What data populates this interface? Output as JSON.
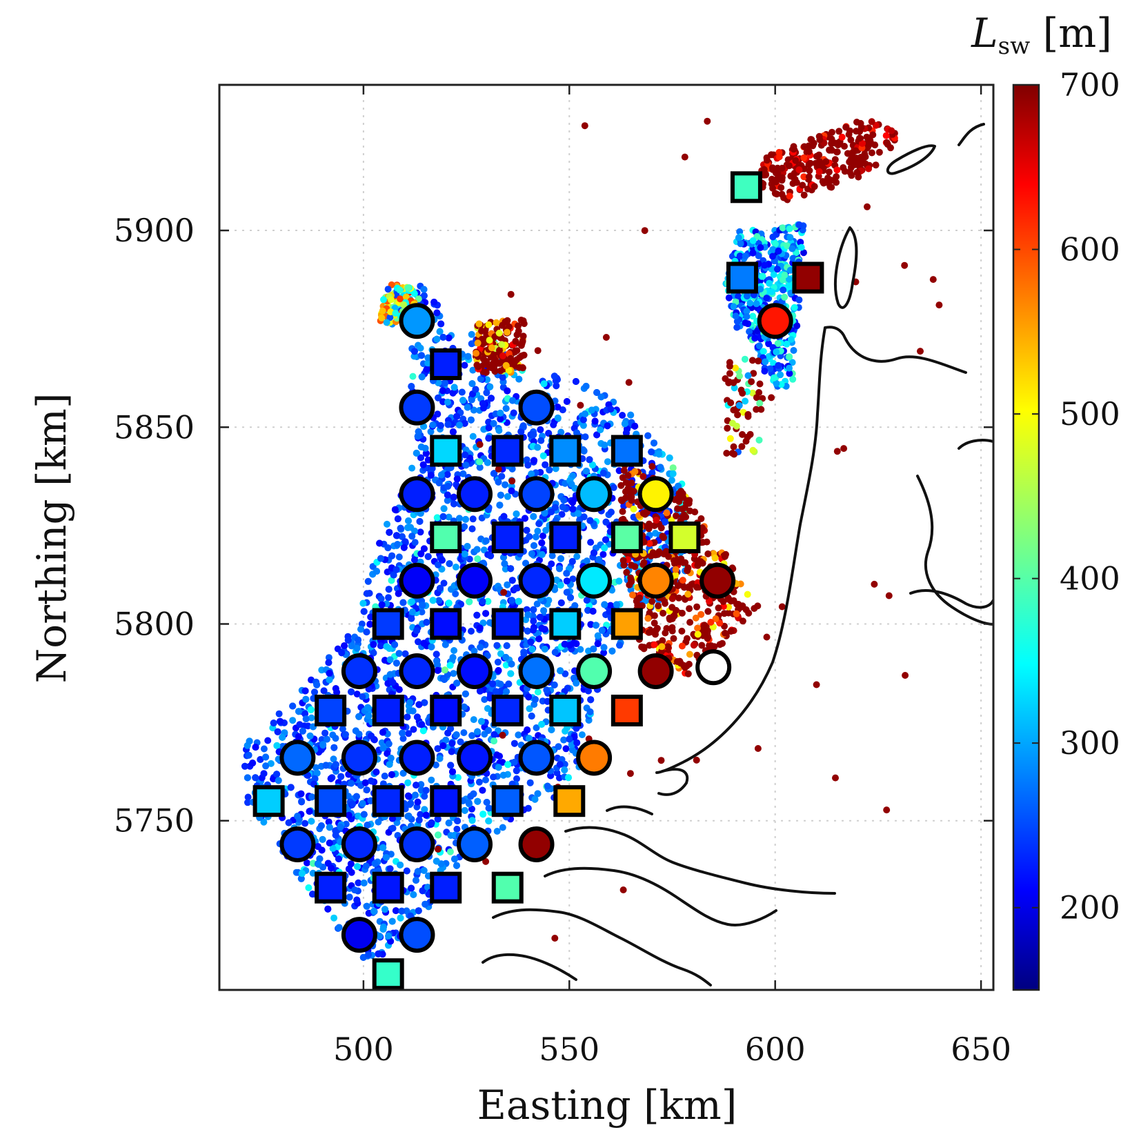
{
  "chart_data": {
    "type": "scatter",
    "xlabel": "Easting [km]",
    "ylabel": "Northing [km]",
    "xlim": [
      465,
      653
    ],
    "ylim": [
      5707,
      5937
    ],
    "xticks": [
      500,
      550,
      600,
      650
    ],
    "yticks": [
      5750,
      5800,
      5850,
      5900
    ],
    "grid": true,
    "colorbar": {
      "label_main": "L",
      "label_sub": "sw",
      "label_unit": " [m]",
      "range": [
        150,
        700
      ],
      "ticks": [
        200,
        300,
        400,
        500,
        600,
        700
      ],
      "colormap": "jet"
    },
    "series": [
      {
        "marker": "circle",
        "points": [
          {
            "x": 513,
            "y": 5877,
            "c": 300
          },
          {
            "x": 600,
            "y": 5877,
            "c": 620
          },
          {
            "x": 513,
            "y": 5855,
            "c": 250
          },
          {
            "x": 542,
            "y": 5855,
            "c": 260
          },
          {
            "x": 513,
            "y": 5833,
            "c": 235
          },
          {
            "x": 527,
            "y": 5833,
            "c": 235
          },
          {
            "x": 542,
            "y": 5833,
            "c": 255
          },
          {
            "x": 556,
            "y": 5833,
            "c": 320
          },
          {
            "x": 571,
            "y": 5833,
            "c": 500
          },
          {
            "x": 513,
            "y": 5811,
            "c": 215
          },
          {
            "x": 527,
            "y": 5811,
            "c": 215
          },
          {
            "x": 542,
            "y": 5811,
            "c": 240
          },
          {
            "x": 556,
            "y": 5811,
            "c": 345
          },
          {
            "x": 571,
            "y": 5811,
            "c": 560
          },
          {
            "x": 586,
            "y": 5811,
            "c": 690
          },
          {
            "x": 499,
            "y": 5788,
            "c": 245
          },
          {
            "x": 513,
            "y": 5788,
            "c": 240
          },
          {
            "x": 527,
            "y": 5788,
            "c": 225
          },
          {
            "x": 542,
            "y": 5788,
            "c": 280
          },
          {
            "x": 556,
            "y": 5788,
            "c": 400
          },
          {
            "x": 571,
            "y": 5788,
            "c": 690
          },
          {
            "x": 484,
            "y": 5766,
            "c": 275
          },
          {
            "x": 499,
            "y": 5766,
            "c": 245
          },
          {
            "x": 513,
            "y": 5766,
            "c": 235
          },
          {
            "x": 527,
            "y": 5766,
            "c": 230
          },
          {
            "x": 542,
            "y": 5766,
            "c": 265
          },
          {
            "x": 556,
            "y": 5766,
            "c": 565
          },
          {
            "x": 484,
            "y": 5744,
            "c": 250
          },
          {
            "x": 499,
            "y": 5744,
            "c": 240
          },
          {
            "x": 513,
            "y": 5744,
            "c": 245
          },
          {
            "x": 527,
            "y": 5744,
            "c": 270
          },
          {
            "x": 542,
            "y": 5744,
            "c": 690
          },
          {
            "x": 499,
            "y": 5721,
            "c": 210
          },
          {
            "x": 513,
            "y": 5721,
            "c": 260
          }
        ]
      },
      {
        "marker": "circle-open",
        "points": [
          {
            "x": 585,
            "y": 5789
          }
        ]
      },
      {
        "marker": "square",
        "points": [
          {
            "x": 593,
            "y": 5911,
            "c": 390
          },
          {
            "x": 592,
            "y": 5888,
            "c": 285
          },
          {
            "x": 608,
            "y": 5888,
            "c": 690
          },
          {
            "x": 520,
            "y": 5866,
            "c": 235
          },
          {
            "x": 520,
            "y": 5844,
            "c": 335
          },
          {
            "x": 535,
            "y": 5844,
            "c": 240
          },
          {
            "x": 549,
            "y": 5844,
            "c": 295
          },
          {
            "x": 564,
            "y": 5844,
            "c": 280
          },
          {
            "x": 520,
            "y": 5822,
            "c": 400
          },
          {
            "x": 535,
            "y": 5822,
            "c": 235
          },
          {
            "x": 549,
            "y": 5822,
            "c": 235
          },
          {
            "x": 564,
            "y": 5822,
            "c": 405
          },
          {
            "x": 578,
            "y": 5822,
            "c": 470
          },
          {
            "x": 506,
            "y": 5800,
            "c": 250
          },
          {
            "x": 520,
            "y": 5800,
            "c": 225
          },
          {
            "x": 535,
            "y": 5800,
            "c": 235
          },
          {
            "x": 549,
            "y": 5800,
            "c": 330
          },
          {
            "x": 564,
            "y": 5800,
            "c": 545
          },
          {
            "x": 492,
            "y": 5778,
            "c": 255
          },
          {
            "x": 506,
            "y": 5778,
            "c": 235
          },
          {
            "x": 520,
            "y": 5778,
            "c": 225
          },
          {
            "x": 535,
            "y": 5778,
            "c": 240
          },
          {
            "x": 549,
            "y": 5778,
            "c": 325
          },
          {
            "x": 564,
            "y": 5778,
            "c": 600
          },
          {
            "x": 477,
            "y": 5755,
            "c": 330
          },
          {
            "x": 492,
            "y": 5755,
            "c": 260
          },
          {
            "x": 506,
            "y": 5755,
            "c": 240
          },
          {
            "x": 520,
            "y": 5755,
            "c": 230
          },
          {
            "x": 535,
            "y": 5755,
            "c": 270
          },
          {
            "x": 550,
            "y": 5755,
            "c": 540
          },
          {
            "x": 492,
            "y": 5733,
            "c": 235
          },
          {
            "x": 506,
            "y": 5733,
            "c": 230
          },
          {
            "x": 520,
            "y": 5733,
            "c": 235
          },
          {
            "x": 535,
            "y": 5733,
            "c": 400
          },
          {
            "x": 506,
            "y": 5711,
            "c": 385
          }
        ]
      }
    ]
  }
}
